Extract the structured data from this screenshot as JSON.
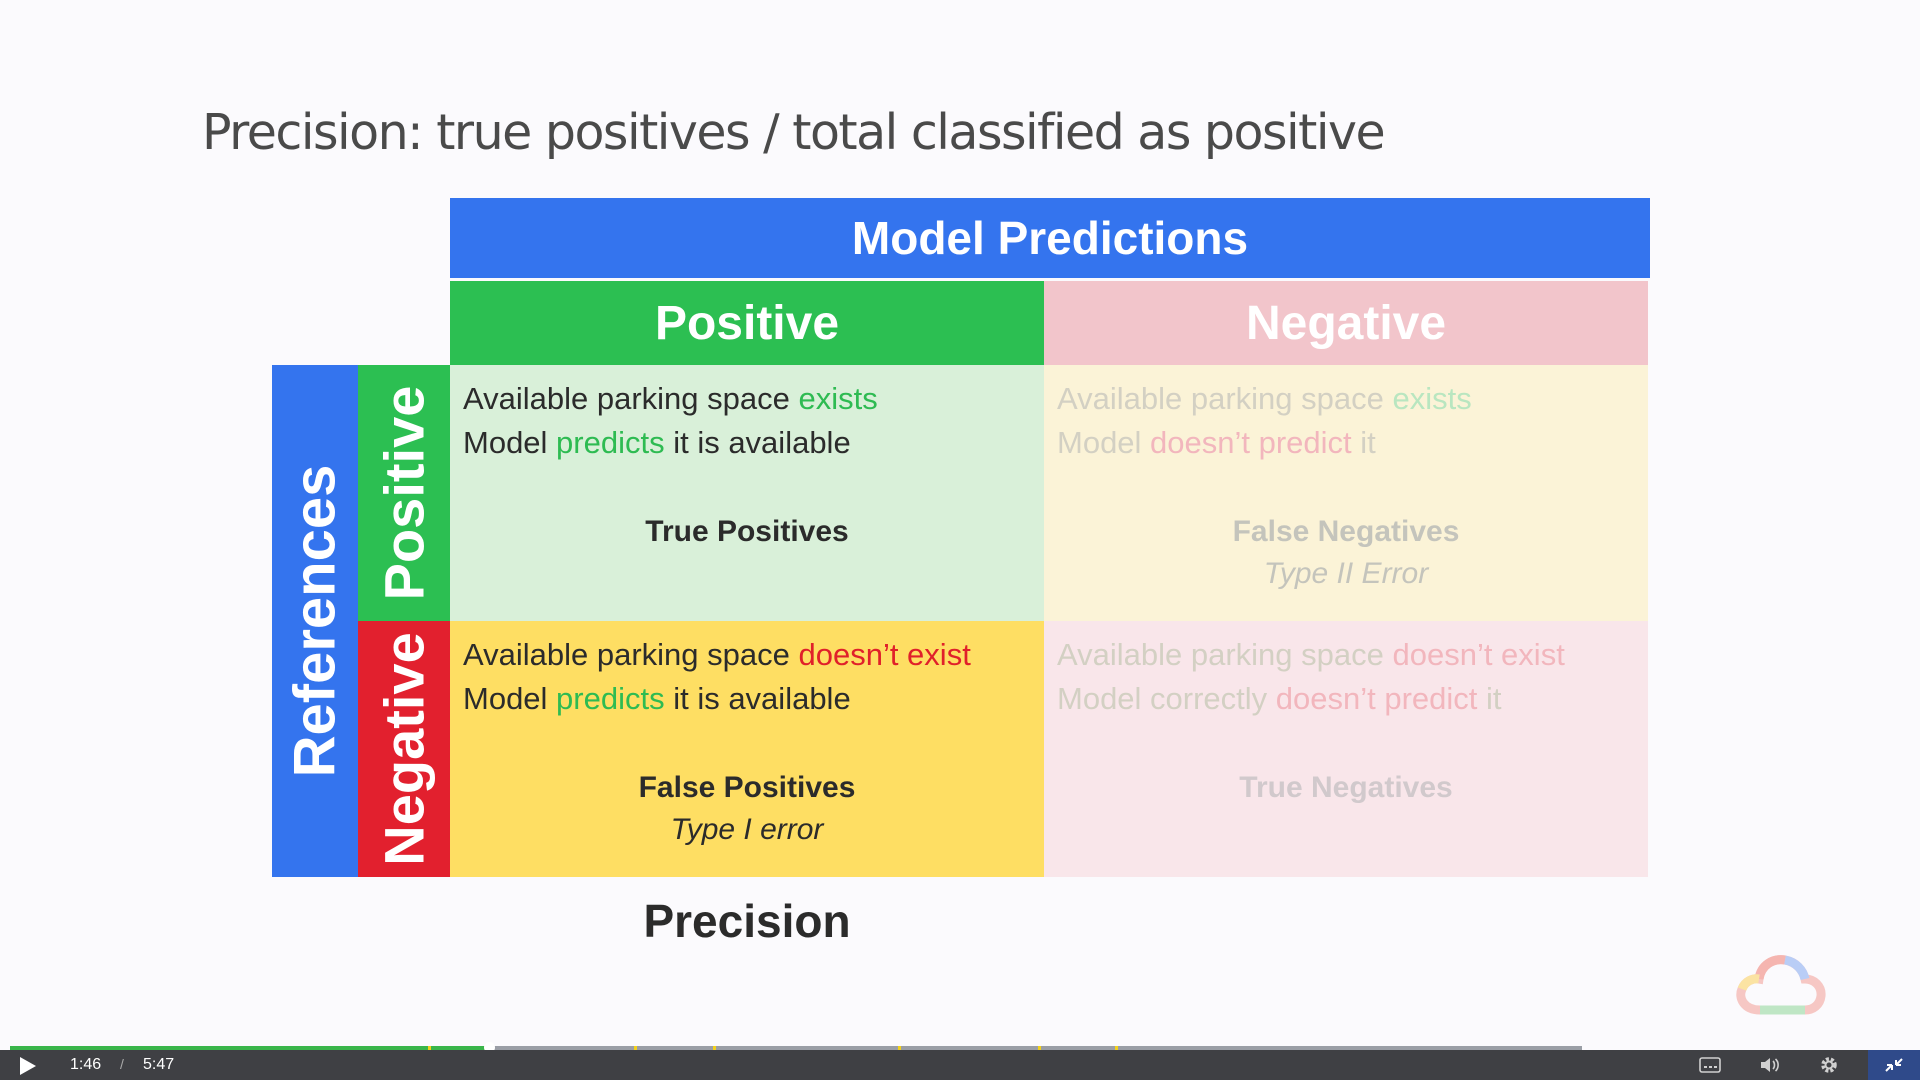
{
  "slide": {
    "title": "Precision: true positives / total classified as positive",
    "header_model": "Model Predictions",
    "header_positive": "Positive",
    "header_negative": "Negative",
    "side_references": "References",
    "side_positive": "Positive",
    "side_negative": "Negative",
    "cells": {
      "tp": {
        "l1_prefix": "Available parking space ",
        "l1_hl": "exists",
        "l2_prefix": "Model ",
        "l2_hl": "predicts",
        "l2_suffix": " it is available",
        "result": "True Positives"
      },
      "fn": {
        "l1_prefix": "Available parking space ",
        "l1_hl": "exists",
        "l2_prefix": "Model ",
        "l2_hl": "doesn’t predict",
        "l2_suffix": " it",
        "result": "False Negatives",
        "subresult": "Type II Error"
      },
      "fp": {
        "l1_prefix": "Available parking space ",
        "l1_hl": "doesn’t exist",
        "l2_prefix": "Model ",
        "l2_hl": "predicts",
        "l2_suffix": " it is available",
        "result": "False Positives",
        "subresult": "Type I error"
      },
      "tn": {
        "l1_prefix": "Available parking space ",
        "l1_hl": "doesn’t exist",
        "l2_prefix": "Model correctly ",
        "l2_hl": "doesn’t predict",
        "l2_suffix": " it",
        "result": "True Negatives"
      }
    },
    "footer_label": "Precision"
  },
  "player": {
    "current_time": "1:46",
    "separator": "/",
    "duration": "5:47",
    "progress_fraction": 0.305,
    "chapter_fractions": [
      0.266,
      0.397,
      0.447,
      0.565,
      0.654,
      0.703
    ],
    "colors": {
      "progress": "#39b54a",
      "chapter": "#f3d11b",
      "bar": "#3f4044"
    },
    "icons": [
      "play-icon",
      "captions-icon",
      "volume-icon",
      "settings-icon",
      "exit-fullscreen-icon",
      "google-cloud-logo"
    ]
  }
}
